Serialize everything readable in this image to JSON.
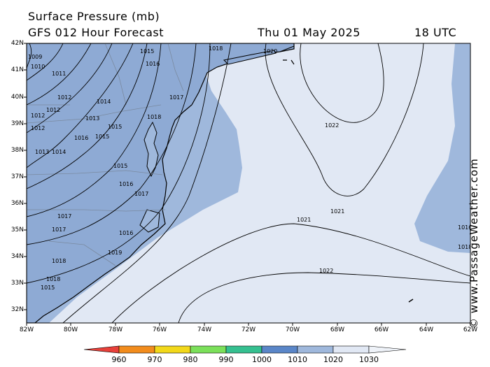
{
  "header": {
    "title": "Surface Pressure (mb)",
    "subtitle": "GFS 012 Hour Forecast",
    "date": "Thu 01 May 2025",
    "time": "18 UTC"
  },
  "credit": "© www.PassageWeather.com",
  "axes": {
    "lat_ticks": [
      "42N",
      "41N",
      "40N",
      "39N",
      "38N",
      "37N",
      "36N",
      "35N",
      "34N",
      "33N",
      "32N"
    ],
    "lon_ticks": [
      "82W",
      "80W",
      "78W",
      "76W",
      "74W",
      "72W",
      "70W",
      "68W",
      "66W",
      "64W",
      "62W"
    ]
  },
  "colorbar": {
    "labels": [
      "960",
      "970",
      "980",
      "990",
      "1000",
      "1010",
      "1020",
      "1030"
    ],
    "colors": [
      "#e8403a",
      "#f28c1c",
      "#f2d81a",
      "#7be05a",
      "#35c090",
      "#5a86c8",
      "#9fb8dc",
      "#e1e8f4"
    ]
  },
  "colors": {
    "band_1010_1020": "#9fb8dc",
    "band_1020_1030": "#e1e8f4",
    "band_1000_1010": "#5a86c8",
    "isobar": "#000000",
    "land_border": "#7a8aa0"
  },
  "contour_labels": [
    "1009",
    "1010",
    "1011",
    "1012",
    "1012",
    "1012",
    "1012",
    "1013",
    "1013",
    "1014",
    "1014",
    "1015",
    "1015",
    "1015",
    "1015",
    "1016",
    "1016",
    "1016",
    "1016",
    "1017",
    "1017",
    "1017",
    "1017",
    "1018",
    "1018",
    "1018",
    "1018",
    "1019",
    "1020",
    "1021",
    "1021",
    "1022",
    "1022",
    "1015",
    "1016",
    "1018"
  ]
}
